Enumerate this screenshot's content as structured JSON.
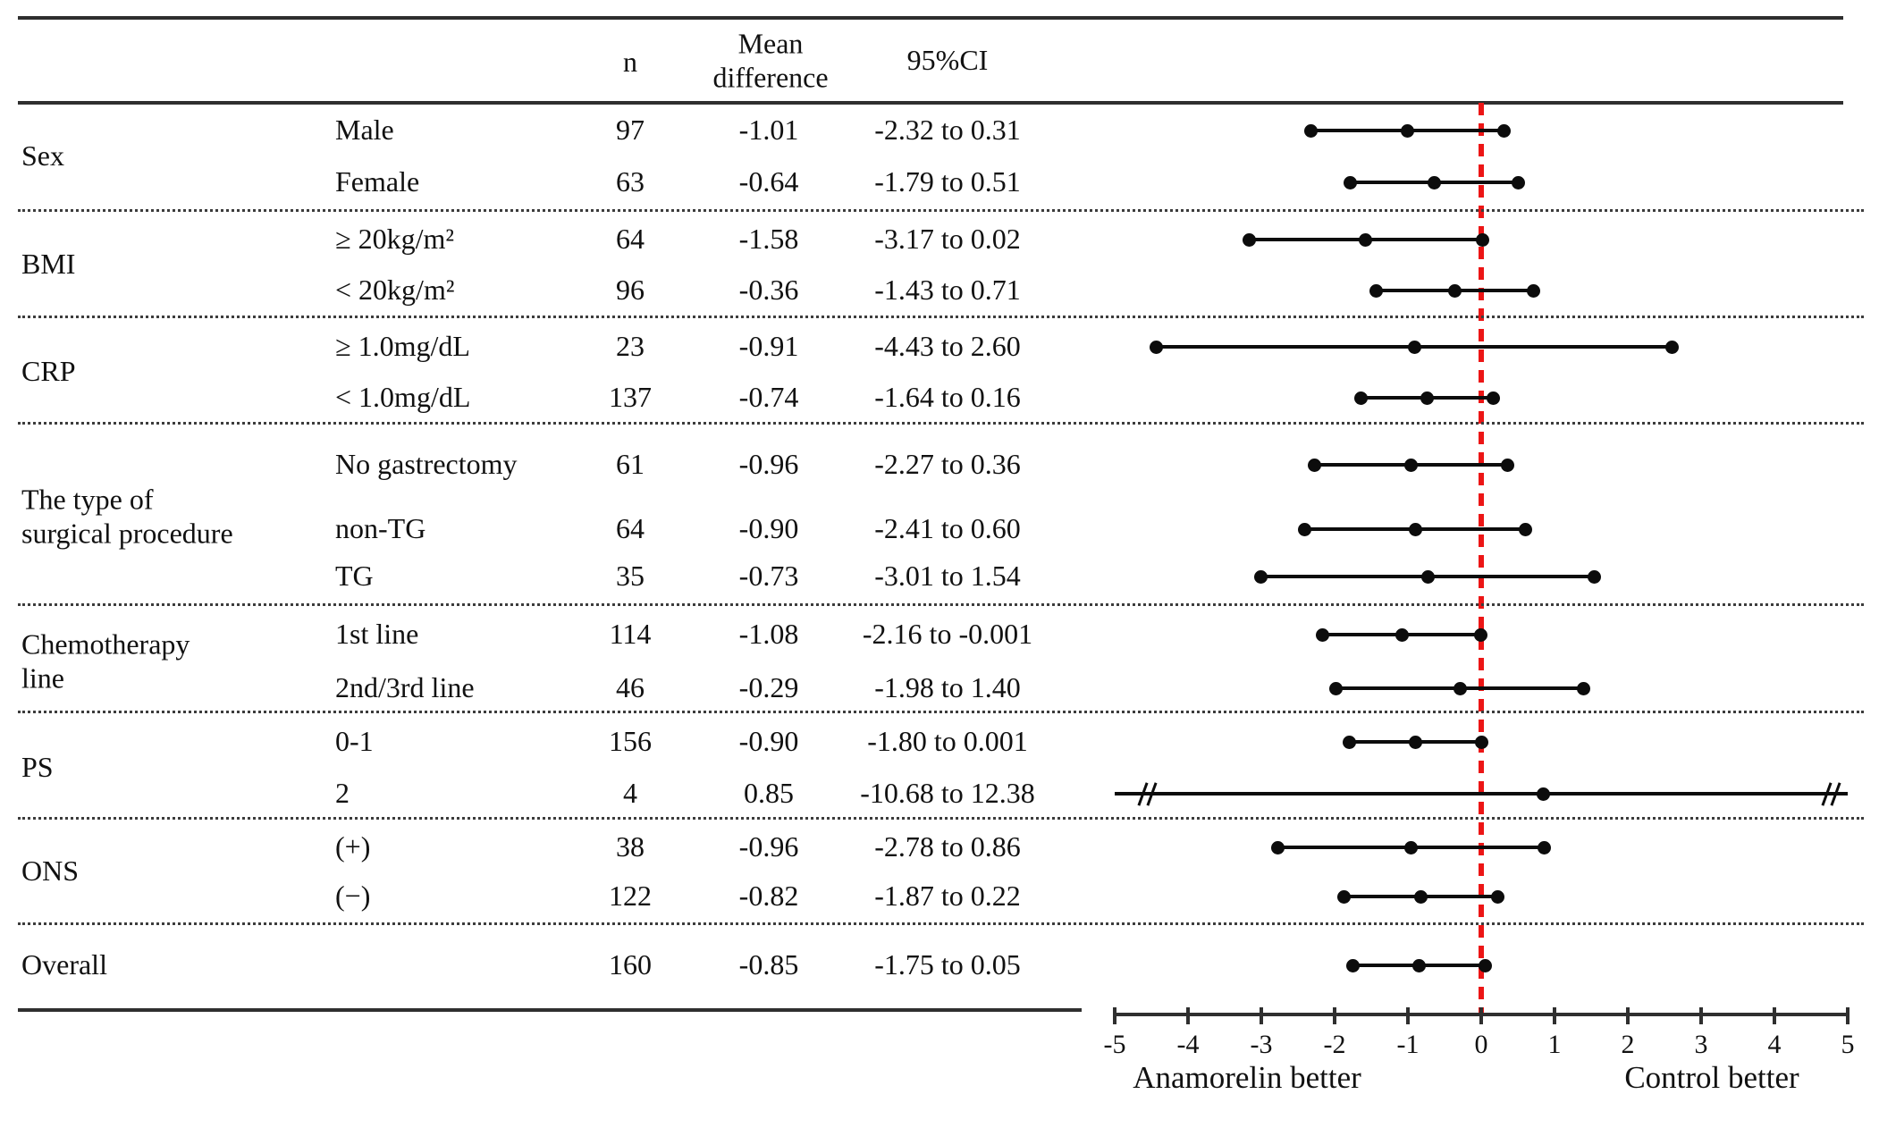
{
  "chart_data": {
    "type": "forest",
    "columns": {
      "n": "n",
      "mean": [
        "Mean",
        "difference"
      ],
      "ci": "95%CI"
    },
    "x_axis": {
      "min": -5,
      "max": 5,
      "ticks": [
        -5,
        -4,
        -3,
        -2,
        -1,
        0,
        1,
        2,
        3,
        4,
        5
      ],
      "tick_labels": [
        "-5",
        "-4",
        "-3",
        "-2",
        "-1",
        "0",
        "1",
        "2",
        "3",
        "4",
        "5"
      ],
      "zero_reference": 0,
      "left_label": "Anamorelin better",
      "right_label": "Control better",
      "grid": false
    },
    "groups": [
      {
        "label": "Sex",
        "label_lines": [
          "Sex"
        ],
        "rows": [
          {
            "level": "Male",
            "n": 97,
            "mean": -1.01,
            "ci_lo": -2.32,
            "ci_hi": 0.31,
            "mean_text": "-1.01",
            "ci_text": "-2.32 to 0.31"
          },
          {
            "level": "Female",
            "n": 63,
            "mean": -0.64,
            "ci_lo": -1.79,
            "ci_hi": 0.51,
            "mean_text": "-0.64",
            "ci_text": "-1.79 to 0.51"
          }
        ]
      },
      {
        "label": "BMI",
        "label_lines": [
          "BMI"
        ],
        "rows": [
          {
            "level": "≥ 20kg/m²",
            "n": 64,
            "mean": -1.58,
            "ci_lo": -3.17,
            "ci_hi": 0.02,
            "mean_text": "-1.58",
            "ci_text": "-3.17 to 0.02"
          },
          {
            "level": "< 20kg/m²",
            "n": 96,
            "mean": -0.36,
            "ci_lo": -1.43,
            "ci_hi": 0.71,
            "mean_text": "-0.36",
            "ci_text": "-1.43 to 0.71"
          }
        ]
      },
      {
        "label": "CRP",
        "label_lines": [
          "CRP"
        ],
        "rows": [
          {
            "level": "≥ 1.0mg/dL",
            "n": 23,
            "mean": -0.91,
            "ci_lo": -4.43,
            "ci_hi": 2.6,
            "mean_text": "-0.91",
            "ci_text": "-4.43 to 2.60"
          },
          {
            "level": "< 1.0mg/dL",
            "n": 137,
            "mean": -0.74,
            "ci_lo": -1.64,
            "ci_hi": 0.16,
            "mean_text": "-0.74",
            "ci_text": "-1.64 to 0.16"
          }
        ]
      },
      {
        "label": "The type of surgical procedure",
        "label_lines": [
          "The type of",
          "surgical procedure"
        ],
        "rows": [
          {
            "level": "No gastrectomy",
            "n": 61,
            "mean": -0.96,
            "ci_lo": -2.27,
            "ci_hi": 0.36,
            "mean_text": "-0.96",
            "ci_text": "-2.27 to 0.36"
          },
          {
            "level": "non-TG",
            "n": 64,
            "mean": -0.9,
            "ci_lo": -2.41,
            "ci_hi": 0.6,
            "mean_text": "-0.90",
            "ci_text": "-2.41 to 0.60"
          },
          {
            "level": "TG",
            "n": 35,
            "mean": -0.73,
            "ci_lo": -3.01,
            "ci_hi": 1.54,
            "mean_text": "-0.73",
            "ci_text": "-3.01 to 1.54"
          }
        ]
      },
      {
        "label": "Chemotherapy line",
        "label_lines": [
          "Chemotherapy",
          "line"
        ],
        "rows": [
          {
            "level": "1st line",
            "n": 114,
            "mean": -1.08,
            "ci_lo": -2.16,
            "ci_hi": -0.001,
            "mean_text": "-1.08",
            "ci_text": "-2.16 to -0.001"
          },
          {
            "level": "2nd/3rd line",
            "n": 46,
            "mean": -0.29,
            "ci_lo": -1.98,
            "ci_hi": 1.4,
            "mean_text": "-0.29",
            "ci_text": "-1.98 to 1.40"
          }
        ]
      },
      {
        "label": "PS",
        "label_lines": [
          "PS"
        ],
        "rows": [
          {
            "level": "0-1",
            "n": 156,
            "mean": -0.9,
            "ci_lo": -1.8,
            "ci_hi": 0.001,
            "mean_text": "-0.90",
            "ci_text": "-1.80 to 0.001"
          },
          {
            "level": "2",
            "n": 4,
            "mean": 0.85,
            "ci_lo": -10.68,
            "ci_hi": 12.38,
            "mean_text": "0.85",
            "ci_text": "-10.68 to 12.38",
            "off_scale": true
          }
        ]
      },
      {
        "label": "ONS",
        "label_lines": [
          "ONS"
        ],
        "rows": [
          {
            "level": "(+)",
            "n": 38,
            "mean": -0.96,
            "ci_lo": -2.78,
            "ci_hi": 0.86,
            "mean_text": "-0.96",
            "ci_text": "-2.78 to 0.86"
          },
          {
            "level": "(−)",
            "n": 122,
            "mean": -0.82,
            "ci_lo": -1.87,
            "ci_hi": 0.22,
            "mean_text": "-0.82",
            "ci_text": "-1.87 to 0.22"
          }
        ]
      },
      {
        "label": "Overall",
        "label_lines": [
          "Overall"
        ],
        "rows": [
          {
            "level": "",
            "n": 160,
            "mean": -0.85,
            "ci_lo": -1.75,
            "ci_hi": 0.05,
            "mean_text": "-0.85",
            "ci_text": "-1.75 to 0.05"
          }
        ]
      }
    ]
  },
  "colors": {
    "reference_line": "#ec1515",
    "ink": "#0c0c0c",
    "rule": "#2f2f2f"
  }
}
